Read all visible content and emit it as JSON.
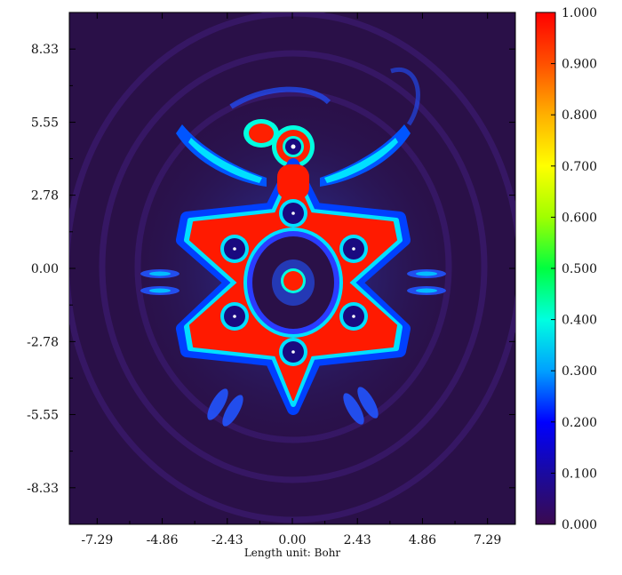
{
  "chart_data": {
    "type": "heatmap",
    "title": "",
    "xlabel": "Length unit: Bohr",
    "ylabel": "",
    "xlim": [
      -8.33,
      8.33
    ],
    "ylim": [
      -9.72,
      9.72
    ],
    "x_ticks": [
      "-7.29",
      "-4.86",
      "-2.43",
      "0.00",
      "2.43",
      "4.86",
      "7.29"
    ],
    "x_tick_values": [
      -7.29,
      -4.86,
      -2.43,
      0.0,
      2.43,
      4.86,
      7.29
    ],
    "y_ticks": [
      "8.33",
      "5.55",
      "2.78",
      "0.00",
      "-2.78",
      "-5.55",
      "-8.33"
    ],
    "y_tick_values": [
      8.33,
      5.55,
      2.78,
      0.0,
      -2.78,
      -5.55,
      -8.33
    ],
    "colorbar": {
      "min": 0.0,
      "max": 1.0,
      "labels": [
        "1.000",
        "0.900",
        "0.800",
        "0.700",
        "0.600",
        "0.500",
        "0.400",
        "0.300",
        "0.200",
        "0.100",
        "0.000"
      ],
      "values": [
        1.0,
        0.9,
        0.8,
        0.7,
        0.6,
        0.5,
        0.4,
        0.3,
        0.2,
        0.1,
        0.0
      ],
      "colors": [
        "#3a0a4f",
        "#1a0aa0",
        "#0000ff",
        "#00a0ff",
        "#00ffe0",
        "#00ff40",
        "#a0ff00",
        "#ffff00",
        "#ffb000",
        "#ff5000",
        "#ff0000"
      ]
    },
    "background_color": "#2a1048",
    "grid": false,
    "legend": "colorbar-right"
  }
}
